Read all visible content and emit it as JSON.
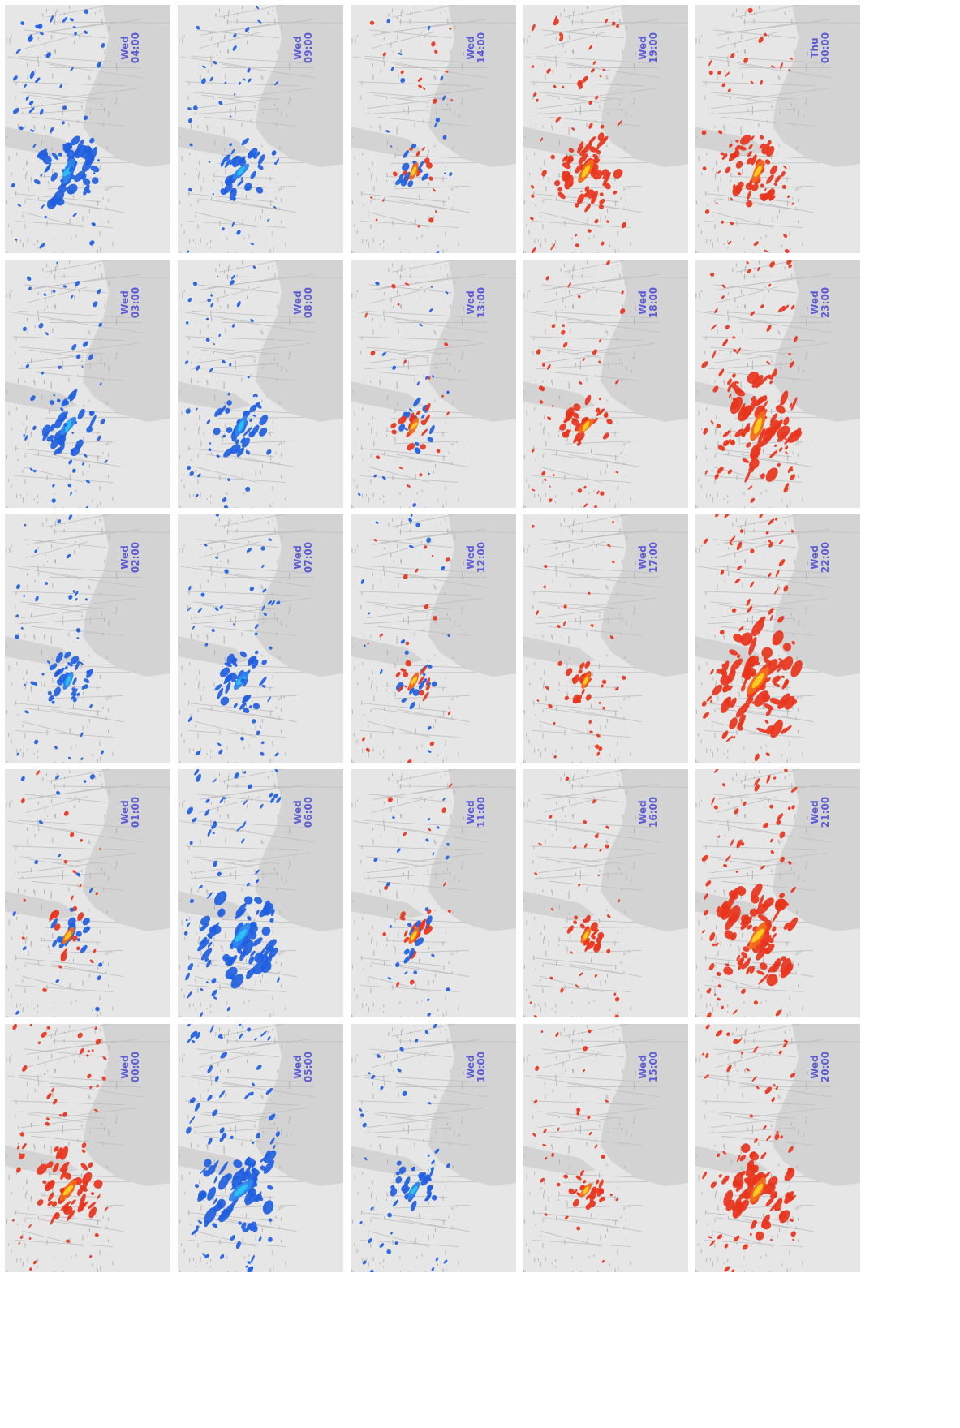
{
  "colors": {
    "water": "#d3d3d3",
    "land": "#e6e6e6",
    "road": "#bfbfbf",
    "label": "#5b5bd6",
    "low_activity": [
      "#1f5fe0",
      "#2f86ee",
      "#29c6f2"
    ],
    "high_activity": [
      "#e8341c",
      "#f46b1a",
      "#ffd21f"
    ]
  },
  "panels": [
    {
      "day": "Wed",
      "time": "00:00",
      "mode": "high",
      "intensity": 0.55
    },
    {
      "day": "Wed",
      "time": "01:00",
      "mode": "mixed",
      "intensity": 0.3
    },
    {
      "day": "Wed",
      "time": "02:00",
      "mode": "low",
      "intensity": 0.3
    },
    {
      "day": "Wed",
      "time": "03:00",
      "mode": "low",
      "intensity": 0.45
    },
    {
      "day": "Wed",
      "time": "04:00",
      "mode": "low",
      "intensity": 0.6
    },
    {
      "day": "Wed",
      "time": "05:00",
      "mode": "low",
      "intensity": 0.8
    },
    {
      "day": "Wed",
      "time": "06:00",
      "mode": "low",
      "intensity": 0.75
    },
    {
      "day": "Wed",
      "time": "07:00",
      "mode": "low",
      "intensity": 0.4
    },
    {
      "day": "Wed",
      "time": "08:00",
      "mode": "low",
      "intensity": 0.4
    },
    {
      "day": "Wed",
      "time": "09:00",
      "mode": "low",
      "intensity": 0.35
    },
    {
      "day": "Wed",
      "time": "10:00",
      "mode": "low",
      "intensity": 0.3
    },
    {
      "day": "Wed",
      "time": "11:00",
      "mode": "mixed",
      "intensity": 0.25
    },
    {
      "day": "Wed",
      "time": "12:00",
      "mode": "mixed",
      "intensity": 0.25
    },
    {
      "day": "Wed",
      "time": "13:00",
      "mode": "mixed",
      "intensity": 0.25
    },
    {
      "day": "Wed",
      "time": "14:00",
      "mode": "mixed",
      "intensity": 0.25
    },
    {
      "day": "Wed",
      "time": "15:00",
      "mode": "high",
      "intensity": 0.2
    },
    {
      "day": "Wed",
      "time": "16:00",
      "mode": "high",
      "intensity": 0.2
    },
    {
      "day": "Wed",
      "time": "17:00",
      "mode": "high",
      "intensity": 0.2
    },
    {
      "day": "Wed",
      "time": "18:00",
      "mode": "high",
      "intensity": 0.35
    },
    {
      "day": "Wed",
      "time": "19:00",
      "mode": "high",
      "intensity": 0.6
    },
    {
      "day": "Wed",
      "time": "20:00",
      "mode": "high",
      "intensity": 0.7
    },
    {
      "day": "Wed",
      "time": "21:00",
      "mode": "high",
      "intensity": 0.85
    },
    {
      "day": "Wed",
      "time": "22:00",
      "mode": "high",
      "intensity": 0.9
    },
    {
      "day": "Wed",
      "time": "23:00",
      "mode": "high",
      "intensity": 0.85
    },
    {
      "day": "Thu",
      "time": "00:00",
      "mode": "high",
      "intensity": 0.5
    }
  ]
}
